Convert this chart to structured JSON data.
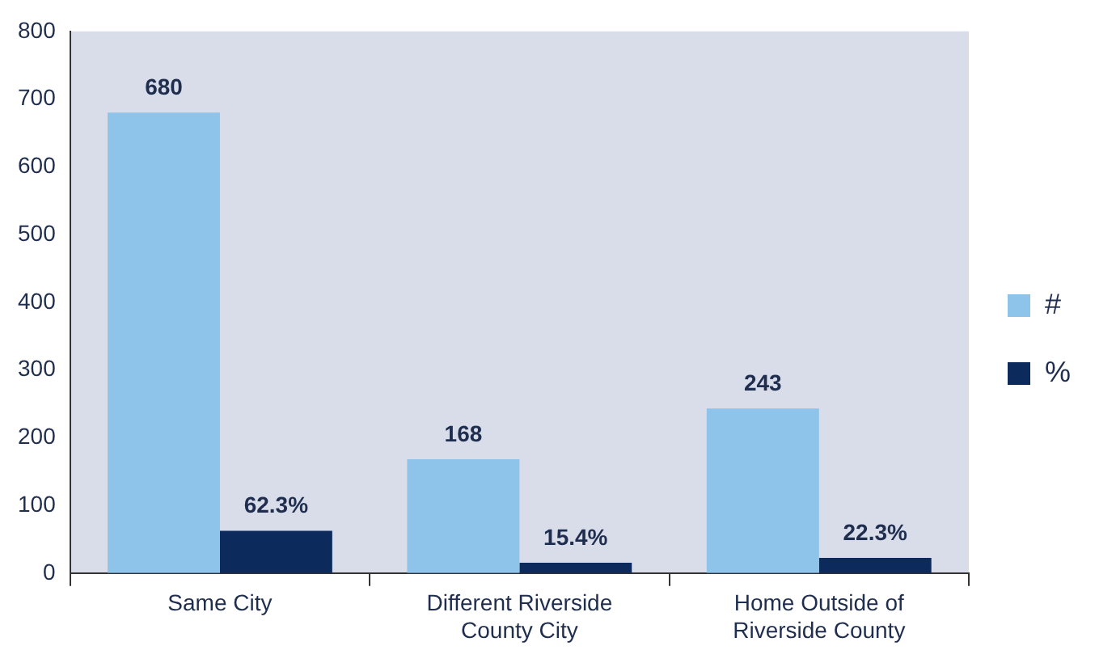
{
  "chart_data": {
    "type": "bar",
    "categories": [
      "Same City",
      "Different Riverside County City",
      "Home Outside of Riverside County"
    ],
    "series": [
      {
        "name": "#",
        "color": "#8ec3ea",
        "values": [
          680,
          168,
          243
        ],
        "value_labels": [
          "680",
          "168",
          "243"
        ]
      },
      {
        "name": "%",
        "color": "#0d2a5c",
        "values": [
          62.3,
          15.4,
          22.3
        ],
        "value_labels": [
          "62.3%",
          "15.4%",
          "22.3%"
        ]
      }
    ],
    "ylim": [
      0,
      800
    ],
    "yticks": [
      0,
      100,
      200,
      300,
      400,
      500,
      600,
      700,
      800
    ],
    "grid": false,
    "legend": "right"
  }
}
